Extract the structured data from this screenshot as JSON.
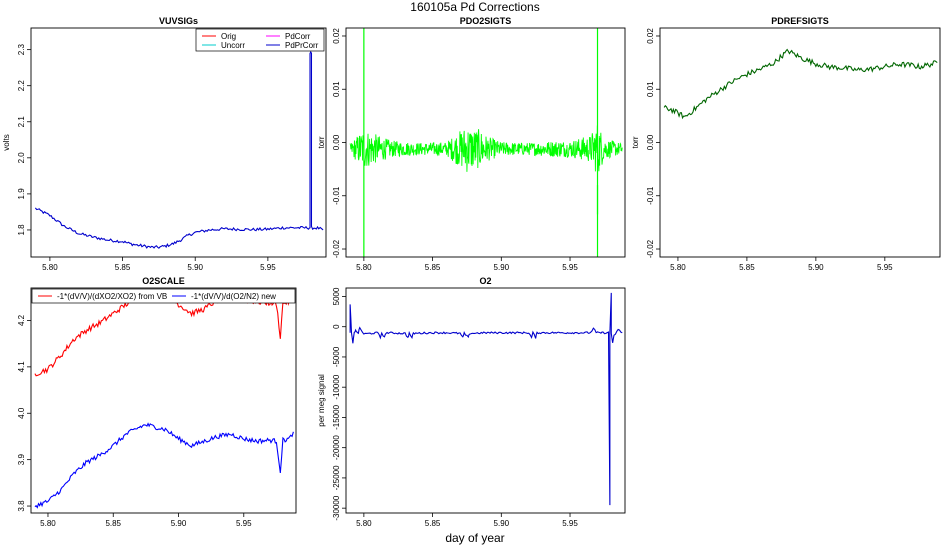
{
  "page": {
    "title": "160105a   Pd Corrections",
    "xlabel": "day of year"
  },
  "chart_data": [
    {
      "id": "vuvsigs",
      "type": "line",
      "title": "VUVSIGs",
      "ylabel": "volts",
      "xlim": [
        5.787,
        5.99
      ],
      "ylim": [
        1.725,
        2.36
      ],
      "xticks": [
        "5.80",
        "5.85",
        "5.90",
        "5.95"
      ],
      "xtick_values": [
        5.8,
        5.85,
        5.9,
        5.95
      ],
      "yticks": [
        "1.8",
        "1.9",
        "2.0",
        "2.1",
        "2.2",
        "2.3"
      ],
      "ytick_values": [
        1.8,
        1.9,
        2.0,
        2.1,
        2.2,
        2.3
      ],
      "legend_position": "top-right",
      "legend": [
        {
          "name": "Orig",
          "color": "#ff0000"
        },
        {
          "name": "PdCorr",
          "color": "#ff00ff"
        },
        {
          "name": "Uncorr",
          "color": "#00cccc"
        },
        {
          "name": "PdPrCorr",
          "color": "#0000cc"
        }
      ],
      "series": [
        {
          "name": "PdPrCorr",
          "color": "#0000cc",
          "noise": 0.004,
          "x": [
            5.79,
            5.8,
            5.81,
            5.82,
            5.83,
            5.84,
            5.85,
            5.855,
            5.86,
            5.865,
            5.87,
            5.875,
            5.88,
            5.885,
            5.89,
            5.895,
            5.9,
            5.91,
            5.92,
            5.93,
            5.94,
            5.95,
            5.96,
            5.97,
            5.978,
            5.979,
            5.979,
            5.98,
            5.98,
            5.985,
            5.988
          ],
          "y": [
            1.86,
            1.84,
            1.81,
            1.79,
            1.78,
            1.772,
            1.768,
            1.762,
            1.758,
            1.755,
            1.752,
            1.752,
            1.756,
            1.762,
            1.772,
            1.785,
            1.793,
            1.8,
            1.803,
            1.802,
            1.801,
            1.802,
            1.806,
            1.806,
            1.806,
            1.806,
            2.29,
            2.29,
            1.806,
            1.805,
            1.8
          ]
        }
      ]
    },
    {
      "id": "pdo2sigts",
      "type": "line",
      "title": "PDO2SIGTS",
      "ylabel": "torr",
      "xlim": [
        5.787,
        5.99
      ],
      "ylim": [
        -0.0215,
        0.0215
      ],
      "xticks": [
        "5.80",
        "5.85",
        "5.90",
        "5.95"
      ],
      "xtick_values": [
        5.8,
        5.85,
        5.9,
        5.95
      ],
      "yticks": [
        "-0.02",
        "-0.01",
        "0.00",
        "0.01",
        "0.02"
      ],
      "ytick_values": [
        -0.02,
        -0.01,
        0.0,
        0.01,
        0.02
      ],
      "series": [
        {
          "name": "",
          "color": "#00ff00",
          "style": "noise",
          "base": -0.0012,
          "x": [
            5.79,
            5.8,
            5.81,
            5.82,
            5.84,
            5.86,
            5.875,
            5.88,
            5.885,
            5.89,
            5.9,
            5.92,
            5.94,
            5.95,
            5.965,
            5.97,
            5.975,
            5.988
          ],
          "amp": [
            0.0008,
            0.003,
            0.002,
            0.0012,
            0.0009,
            0.001,
            0.0035,
            0.003,
            0.0028,
            0.0018,
            0.001,
            0.0009,
            0.0012,
            0.0012,
            0.002,
            0.004,
            0.0015,
            0.0008
          ],
          "spikes": [
            [
              5.8,
              -0.022,
              0.022
            ],
            [
              5.97,
              -0.0135,
              0.022
            ],
            [
              5.97,
              -0.022,
              -0.008
            ]
          ]
        }
      ]
    },
    {
      "id": "pdrefsigts",
      "type": "line",
      "title": "PDREFSIGTS",
      "ylabel": "torr",
      "xlim": [
        5.787,
        5.99
      ],
      "ylim": [
        -0.0215,
        0.0215
      ],
      "xticks": [
        "5.80",
        "5.85",
        "5.90",
        "5.95"
      ],
      "xtick_values": [
        5.8,
        5.85,
        5.9,
        5.95
      ],
      "yticks": [
        "-0.02",
        "-0.01",
        "0.00",
        "0.01",
        "0.02"
      ],
      "ytick_values": [
        -0.02,
        -0.01,
        0.0,
        0.01,
        0.02
      ],
      "series": [
        {
          "name": "",
          "color": "#006600",
          "noise": 0.0005,
          "x": [
            5.79,
            5.795,
            5.8,
            5.805,
            5.81,
            5.82,
            5.83,
            5.84,
            5.85,
            5.86,
            5.87,
            5.875,
            5.88,
            5.885,
            5.89,
            5.9,
            5.91,
            5.92,
            5.93,
            5.94,
            5.95,
            5.96,
            5.97,
            5.975,
            5.98,
            5.988
          ],
          "y": [
            0.0065,
            0.0062,
            0.0055,
            0.0048,
            0.0058,
            0.008,
            0.0098,
            0.0115,
            0.0128,
            0.0138,
            0.015,
            0.0162,
            0.0172,
            0.0165,
            0.0158,
            0.0148,
            0.0142,
            0.014,
            0.0136,
            0.0138,
            0.0142,
            0.0147,
            0.0145,
            0.0142,
            0.0145,
            0.015
          ]
        }
      ]
    },
    {
      "id": "o2scale",
      "type": "line",
      "title": "O2SCALE",
      "ylabel": "",
      "xlim": [
        5.787,
        5.99
      ],
      "ylim": [
        3.785,
        4.27
      ],
      "xticks": [
        "5.80",
        "5.85",
        "5.90",
        "5.95"
      ],
      "xtick_values": [
        5.8,
        5.85,
        5.9,
        5.95
      ],
      "yticks": [
        "3.8",
        "3.9",
        "4.0",
        "4.1",
        "4.2"
      ],
      "ytick_values": [
        3.8,
        3.9,
        4.0,
        4.1,
        4.2
      ],
      "legend_position": "top",
      "legend": [
        {
          "name": "-1*(dV/V)/(dXO2/XO2) from VB",
          "color": "#ff0000"
        },
        {
          "name": "-1*(dV/V)/d(O2/N2) new",
          "color": "#0000ff"
        }
      ],
      "series": [
        {
          "name": "-1*(dV/V)/(dXO2/XO2) from VB",
          "color": "#ff0000",
          "noise": 0.006,
          "x": [
            5.79,
            5.8,
            5.81,
            5.82,
            5.83,
            5.84,
            5.85,
            5.86,
            5.87,
            5.875,
            5.88,
            5.89,
            5.9,
            5.91,
            5.92,
            5.93,
            5.94,
            5.95,
            5.96,
            5.97,
            5.975,
            5.978,
            5.98,
            5.985,
            5.988
          ],
          "y": [
            4.085,
            4.095,
            4.125,
            4.16,
            4.18,
            4.195,
            4.215,
            4.235,
            4.255,
            4.262,
            4.26,
            4.255,
            4.235,
            4.215,
            4.225,
            4.245,
            4.25,
            4.245,
            4.24,
            4.238,
            4.236,
            4.165,
            4.238,
            4.24,
            4.25
          ]
        },
        {
          "name": "-1*(dV/V)/d(O2/N2) new",
          "color": "#0000ff",
          "noise": 0.005,
          "x": [
            5.79,
            5.8,
            5.81,
            5.82,
            5.83,
            5.84,
            5.85,
            5.86,
            5.87,
            5.875,
            5.88,
            5.89,
            5.9,
            5.91,
            5.92,
            5.93,
            5.94,
            5.95,
            5.96,
            5.97,
            5.975,
            5.978,
            5.98,
            5.985,
            5.988
          ],
          "y": [
            3.8,
            3.81,
            3.835,
            3.87,
            3.895,
            3.91,
            3.93,
            3.955,
            3.97,
            3.975,
            3.972,
            3.965,
            3.945,
            3.93,
            3.94,
            3.95,
            3.955,
            3.945,
            3.94,
            3.942,
            3.94,
            3.875,
            3.942,
            3.945,
            3.96
          ]
        }
      ]
    },
    {
      "id": "o2",
      "type": "line",
      "title": "O2",
      "ylabel": "per meg signal",
      "xlim": [
        5.787,
        5.99
      ],
      "ylim": [
        -30800,
        6400
      ],
      "xticks": [
        "5.80",
        "5.85",
        "5.90",
        "5.95"
      ],
      "xtick_values": [
        5.8,
        5.85,
        5.9,
        5.95
      ],
      "yticks": [
        "-30000",
        "-25000",
        "-20000",
        "-15000",
        "-10000",
        "-5000",
        "0",
        "5000"
      ],
      "ytick_values": [
        -30000,
        -25000,
        -20000,
        -15000,
        -10000,
        -5000,
        0,
        5000
      ],
      "series": [
        {
          "name": "",
          "color": "#0000cc",
          "noise": 150,
          "x": [
            5.79,
            5.79,
            5.791,
            5.792,
            5.793,
            5.794,
            5.795,
            5.796,
            5.797,
            5.8,
            5.81,
            5.812,
            5.813,
            5.815,
            5.816,
            5.83,
            5.832,
            5.833,
            5.835,
            5.836,
            5.85,
            5.86,
            5.87,
            5.872,
            5.873,
            5.876,
            5.877,
            5.89,
            5.9,
            5.92,
            5.922,
            5.923,
            5.925,
            5.926,
            5.94,
            5.95,
            5.96,
            5.965,
            5.967,
            5.969,
            5.97,
            5.975,
            5.978,
            5.979,
            5.979,
            5.98,
            5.98,
            5.981,
            5.982,
            5.985,
            5.988
          ],
          "y": [
            -1000,
            3600,
            -1000,
            -2800,
            -1000,
            -500,
            -1000,
            -1000,
            -200,
            -1200,
            -1000,
            -1800,
            -1000,
            -1800,
            -1000,
            -1100,
            -1800,
            -1100,
            -1800,
            -1100,
            -1000,
            -1000,
            -1100,
            -1800,
            -1100,
            -1800,
            -1100,
            -1000,
            -1000,
            -1000,
            -1800,
            -1000,
            -1800,
            -1000,
            -1000,
            -1000,
            -1000,
            -1000,
            -200,
            -1000,
            -1000,
            -1000,
            -1000,
            -29500,
            -1000,
            5600,
            -1000,
            -2800,
            -1500,
            -500,
            -1000
          ]
        }
      ]
    }
  ]
}
